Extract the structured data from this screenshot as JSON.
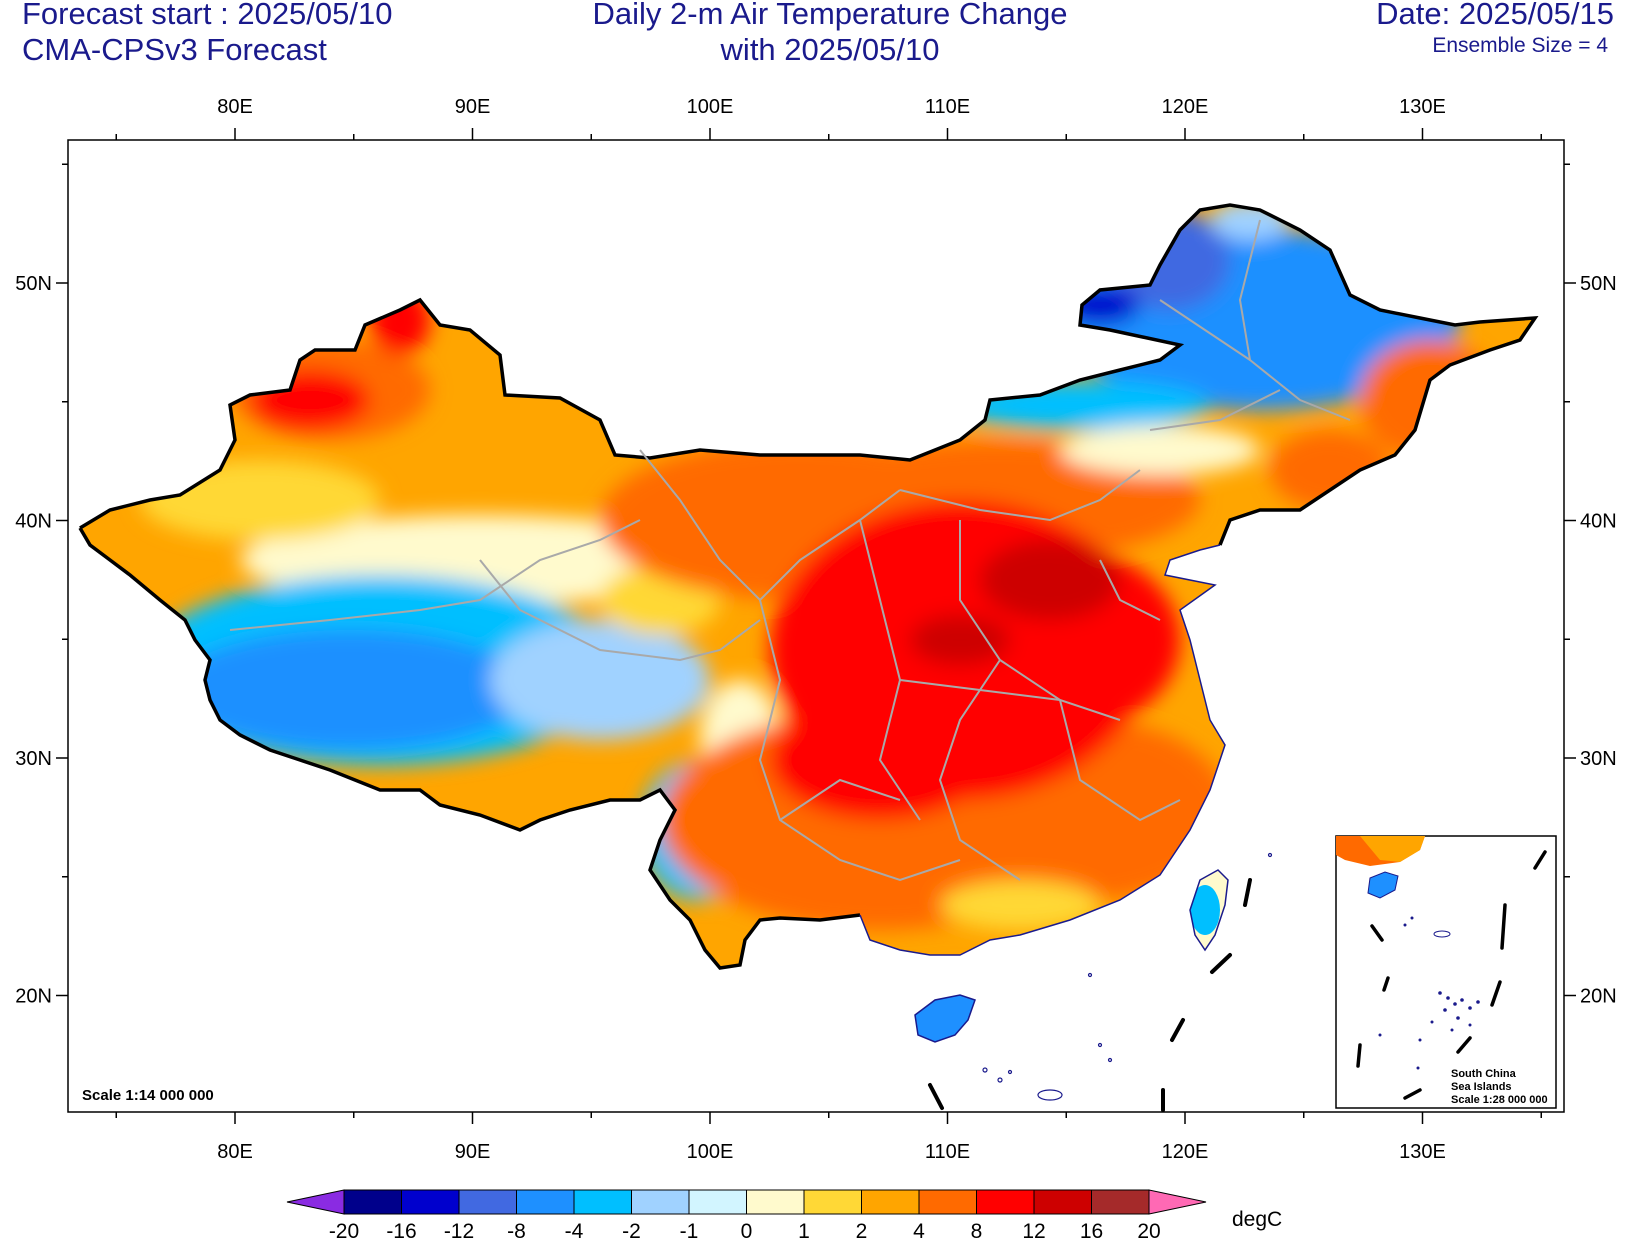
{
  "header": {
    "forecast_start": "Forecast start : 2025/05/10",
    "model": "CMA-CPSv3 Forecast",
    "title_line1": "Daily 2-m Air Temperature Change",
    "title_line2": "with 2025/05/10",
    "date": "Date: 2025/05/15",
    "ensemble": "Ensemble Size = 4"
  },
  "map": {
    "lon_labels": [
      "80E",
      "90E",
      "100E",
      "110E",
      "120E",
      "130E"
    ],
    "lat_labels": [
      "50N",
      "40N",
      "30N",
      "20N"
    ],
    "scale": "Scale 1:14 000 000",
    "inset": {
      "line1": "South China",
      "line2": "Sea Islands",
      "line3": "Scale 1:28 000 000"
    }
  },
  "colorbar": {
    "unit": "degC",
    "levels": [
      "-20",
      "-16",
      "-12",
      "-8",
      "-4",
      "-2",
      "-1",
      "0",
      "1",
      "2",
      "4",
      "8",
      "12",
      "16",
      "20"
    ],
    "colors": [
      "#8a2be2",
      "#00008b",
      "#0000cd",
      "#4169e1",
      "#1e90ff",
      "#00bfff",
      "#a0d2ff",
      "#d2f5ff",
      "#fffacd",
      "#ffd836",
      "#ffa500",
      "#ff6a00",
      "#ff0000",
      "#cd0000",
      "#a52a2a",
      "#ff69b4"
    ]
  }
}
